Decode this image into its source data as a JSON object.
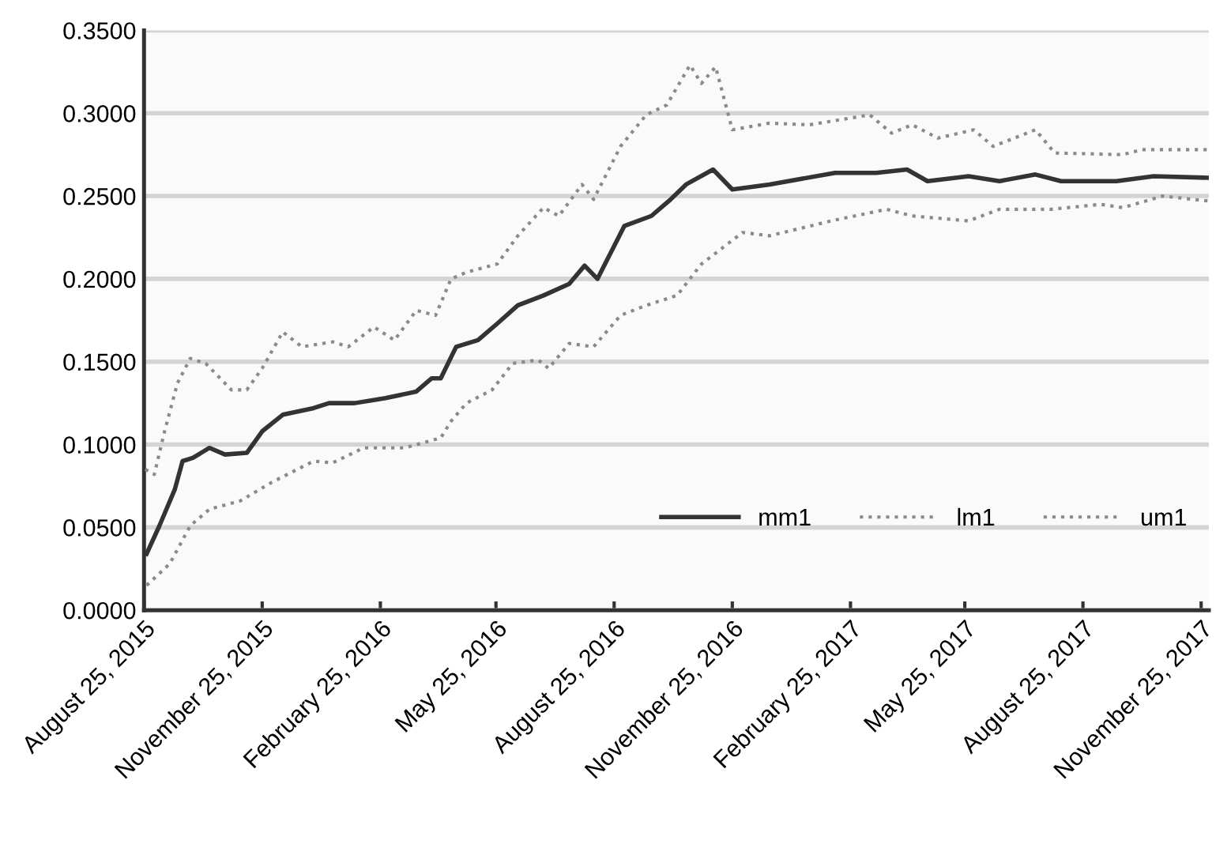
{
  "chart_data": {
    "type": "line",
    "xlim": [
      "2015-08-25",
      "2017-12-01"
    ],
    "xticks": [
      {
        "value": "2015-08-25",
        "label": "August 25, 2015"
      },
      {
        "value": "2015-11-25",
        "label": "November 25, 2015"
      },
      {
        "value": "2016-02-25",
        "label": "February 25, 2016"
      },
      {
        "value": "2016-05-25",
        "label": "May 25, 2016"
      },
      {
        "value": "2016-08-25",
        "label": "August 25, 2016"
      },
      {
        "value": "2016-11-25",
        "label": "November 25, 2016"
      },
      {
        "value": "2017-02-25",
        "label": "February 25, 2017"
      },
      {
        "value": "2017-05-25",
        "label": "May 25, 2017"
      },
      {
        "value": "2017-08-25",
        "label": "August 25, 2017"
      },
      {
        "value": "2017-11-25",
        "label": "November 25, 2017"
      }
    ],
    "ylim": [
      0,
      0.35
    ],
    "yticks": [
      {
        "value": 0,
        "label": "0.0000"
      },
      {
        "value": 0.05,
        "label": "0.0500"
      },
      {
        "value": 0.1,
        "label": "0.1000"
      },
      {
        "value": 0.15,
        "label": "0.1500"
      },
      {
        "value": 0.2,
        "label": "0.2000"
      },
      {
        "value": 0.25,
        "label": "0.2500"
      },
      {
        "value": 0.3,
        "label": "0.3000"
      },
      {
        "value": 0.35,
        "label": "0.3500"
      }
    ],
    "grid": "y",
    "legend": "bottom right",
    "marker": "none",
    "series": [
      {
        "name": "mm1",
        "color": "#333333",
        "line_style": "solid",
        "x": [
          "2015-08-27",
          "2015-09-06",
          "2015-09-18",
          "2015-09-24",
          "2015-10-02",
          "2015-10-15",
          "2015-10-27",
          "2015-11-13",
          "2015-11-25",
          "2015-12-11",
          "2016-01-04",
          "2016-01-16",
          "2016-02-05",
          "2016-02-29",
          "2016-03-24",
          "2016-04-05",
          "2016-04-12",
          "2016-04-24",
          "2016-05-11",
          "2016-05-26",
          "2016-06-11",
          "2016-07-01",
          "2016-07-21",
          "2016-08-02",
          "2016-08-12",
          "2016-09-02",
          "2016-09-23",
          "2016-10-08",
          "2016-10-20",
          "2016-11-10",
          "2016-11-25",
          "2016-12-24",
          "2017-02-13",
          "2017-03-17",
          "2017-04-10",
          "2017-04-26",
          "2017-05-28",
          "2017-06-21",
          "2017-07-19",
          "2017-08-08",
          "2017-09-20",
          "2017-10-19",
          "2017-12-01"
        ],
        "values": [
          0.034,
          0.051,
          0.073,
          0.09,
          0.092,
          0.098,
          0.094,
          0.095,
          0.108,
          0.118,
          0.122,
          0.125,
          0.125,
          0.128,
          0.132,
          0.14,
          0.14,
          0.159,
          0.163,
          0.173,
          0.184,
          0.19,
          0.197,
          0.208,
          0.2,
          0.232,
          0.238,
          0.248,
          0.257,
          0.266,
          0.254,
          0.257,
          0.264,
          0.264,
          0.266,
          0.259,
          0.262,
          0.259,
          0.263,
          0.259,
          0.259,
          0.262,
          0.261
        ]
      },
      {
        "name": "lm1",
        "color": "#8a8a8a",
        "line_style": "dotted",
        "x": [
          "2015-08-27",
          "2015-09-14",
          "2015-09-30",
          "2015-10-15",
          "2015-11-08",
          "2015-12-02",
          "2016-01-04",
          "2016-01-19",
          "2016-02-12",
          "2016-03-15",
          "2016-04-12",
          "2016-04-20",
          "2016-05-02",
          "2016-05-22",
          "2016-06-07",
          "2016-06-27",
          "2016-07-05",
          "2016-07-21",
          "2016-08-09",
          "2016-08-30",
          "2016-09-19",
          "2016-10-13",
          "2016-11-01",
          "2016-12-03",
          "2016-12-24",
          "2017-02-10",
          "2017-03-25",
          "2017-04-14",
          "2017-05-28",
          "2017-06-21",
          "2017-07-31",
          "2017-09-08",
          "2017-09-25",
          "2017-10-26",
          "2017-12-01"
        ],
        "values": [
          0.015,
          0.028,
          0.051,
          0.061,
          0.066,
          0.077,
          0.09,
          0.089,
          0.098,
          0.098,
          0.104,
          0.114,
          0.125,
          0.133,
          0.149,
          0.151,
          0.146,
          0.161,
          0.159,
          0.178,
          0.184,
          0.19,
          0.209,
          0.228,
          0.226,
          0.235,
          0.242,
          0.238,
          0.235,
          0.242,
          0.242,
          0.245,
          0.243,
          0.25,
          0.247
        ]
      },
      {
        "name": "um1",
        "color": "#8a8a8a",
        "line_style": "dotted",
        "x": [
          "2015-08-26",
          "2015-09-02",
          "2015-09-10",
          "2015-09-20",
          "2015-09-30",
          "2015-10-12",
          "2015-11-01",
          "2015-11-13",
          "2015-11-25",
          "2015-12-11",
          "2015-12-26",
          "2016-01-19",
          "2016-01-31",
          "2016-02-20",
          "2016-03-07",
          "2016-03-24",
          "2016-04-08",
          "2016-04-20",
          "2016-05-02",
          "2016-05-26",
          "2016-06-11",
          "2016-07-01",
          "2016-07-13",
          "2016-07-31",
          "2016-08-09",
          "2016-08-30",
          "2016-09-19",
          "2016-10-05",
          "2016-10-23",
          "2016-11-01",
          "2016-11-12",
          "2016-11-25",
          "2016-12-24",
          "2017-01-24",
          "2017-03-12",
          "2017-03-29",
          "2017-04-14",
          "2017-05-04",
          "2017-06-01",
          "2017-06-16",
          "2017-07-19",
          "2017-08-03",
          "2017-09-25",
          "2017-10-10",
          "2017-12-01"
        ],
        "values": [
          0.085,
          0.082,
          0.108,
          0.137,
          0.152,
          0.149,
          0.133,
          0.133,
          0.146,
          0.168,
          0.159,
          0.162,
          0.159,
          0.171,
          0.163,
          0.181,
          0.178,
          0.2,
          0.204,
          0.209,
          0.226,
          0.243,
          0.238,
          0.257,
          0.248,
          0.28,
          0.299,
          0.305,
          0.329,
          0.318,
          0.328,
          0.29,
          0.294,
          0.293,
          0.299,
          0.288,
          0.293,
          0.285,
          0.29,
          0.28,
          0.29,
          0.276,
          0.275,
          0.278,
          0.278
        ]
      }
    ]
  }
}
